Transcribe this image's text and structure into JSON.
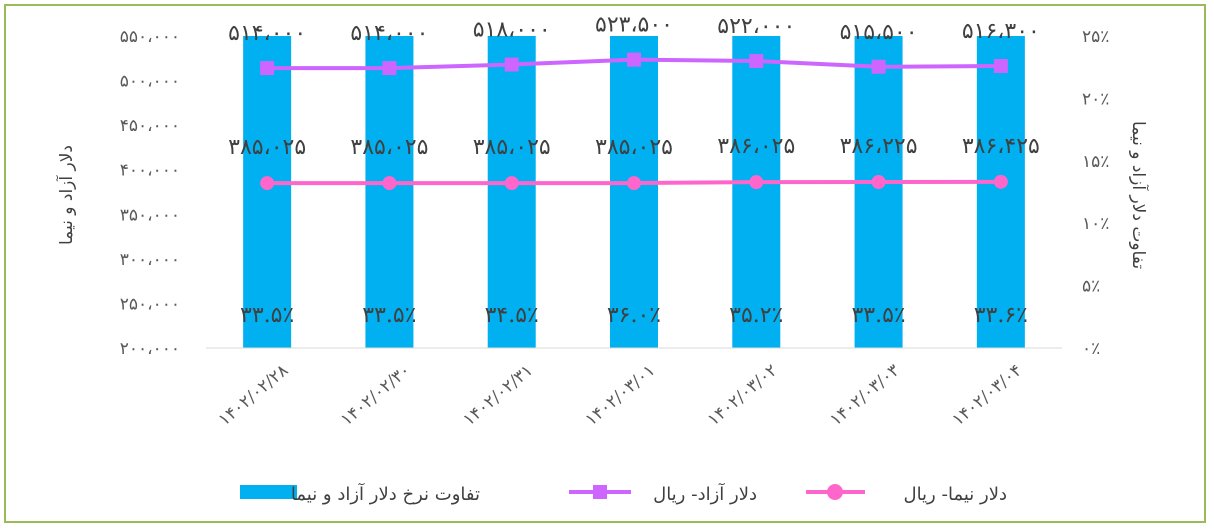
{
  "chart_data": {
    "type": "bar",
    "categories": [
      "۱۴۰۲/۰۲/۲۸",
      "۱۴۰۲/۰۲/۳۰",
      "۱۴۰۲/۰۲/۳۱",
      "۱۴۰۲/۰۳/۰۱",
      "۱۴۰۲/۰۳/۰۲",
      "۱۴۰۲/۰۳/۰۳",
      "۱۴۰۲/۰۳/۰۴"
    ],
    "series": [
      {
        "name": "تفاوت نرخ دلار آزاد و نیما",
        "type": "bar",
        "axis": "right",
        "values": [
          33.5,
          33.5,
          34.5,
          36.0,
          35.2,
          33.5,
          33.6
        ],
        "labels": [
          "۳۳.۵٪",
          "۳۳.۵٪",
          "۳۴.۵٪",
          "۳۶.۰٪",
          "۳۵.۲٪",
          "۳۳.۵٪",
          "۳۳.۶٪"
        ],
        "color": "#00b0f0"
      },
      {
        "name": "دلار آزاد- ریال",
        "type": "line",
        "axis": "left",
        "marker": "square",
        "values": [
          514000,
          514000,
          518000,
          523500,
          522000,
          515500,
          516300
        ],
        "labels": [
          "۵۱۴،۰۰۰",
          "۵۱۴،۰۰۰",
          "۵۱۸،۰۰۰",
          "۵۲۳،۵۰۰",
          "۵۲۲،۰۰۰",
          "۵۱۵،۵۰۰",
          "۵۱۶،۳۰۰"
        ],
        "color": "#cc66ff"
      },
      {
        "name": "دلار نیما- ریال",
        "type": "line",
        "axis": "left",
        "marker": "circle",
        "values": [
          385025,
          385025,
          385025,
          385025,
          386025,
          386225,
          386425
        ],
        "labels": [
          "۳۸۵،۰۲۵",
          "۳۸۵،۰۲۵",
          "۳۸۵،۰۲۵",
          "۳۸۵،۰۲۵",
          "۳۸۶،۰۲۵",
          "۳۸۶،۲۲۵",
          "۳۸۶،۴۲۵"
        ],
        "color": "#ff66cc"
      }
    ],
    "y_left": {
      "label": "دلار آزاد و نیما",
      "range": [
        200000,
        550000
      ],
      "ticks": [
        550000,
        500000,
        450000,
        400000,
        350000,
        300000,
        250000,
        200000
      ],
      "tick_labels": [
        "۵۵۰،۰۰۰",
        "۵۰۰،۰۰۰",
        "۴۵۰،۰۰۰",
        "۴۰۰،۰۰۰",
        "۳۵۰،۰۰۰",
        "۳۰۰،۰۰۰",
        "۲۵۰،۰۰۰",
        "۲۰۰،۰۰۰"
      ]
    },
    "y_right": {
      "label": "تفاوت دلار آزاد و نیما",
      "range": [
        0,
        25
      ],
      "ticks": [
        25,
        20,
        15,
        10,
        5,
        0
      ],
      "tick_labels": [
        "۲۵٪",
        "۲۰٪",
        "۱۵٪",
        "۱۰٪",
        "۵٪",
        "۰٪"
      ]
    },
    "grid": false,
    "legend_position": "bottom"
  }
}
